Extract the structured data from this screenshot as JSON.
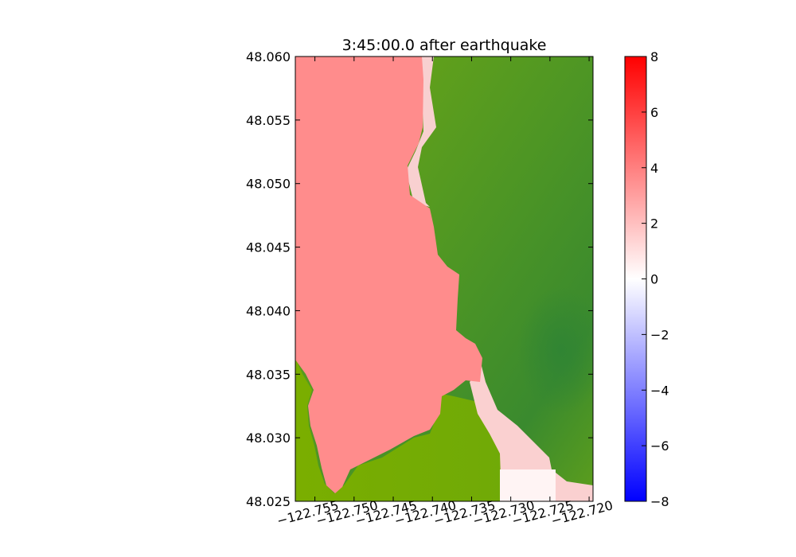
{
  "chart_data": {
    "type": "heatmap",
    "title": "3:45:00.0 after earthquake",
    "xlabel": "",
    "ylabel": "",
    "xlim": [
      -122.7575,
      -122.7195
    ],
    "ylim": [
      48.025,
      48.06
    ],
    "x_ticks": [
      -122.755,
      -122.75,
      -122.745,
      -122.74,
      -122.735,
      -122.73,
      -122.725,
      -122.72
    ],
    "x_tick_labels": [
      "−122.755",
      "−122.750",
      "−122.745",
      "−122.740",
      "−122.735",
      "−122.730",
      "−122.725",
      "−122.720"
    ],
    "y_ticks": [
      48.025,
      48.03,
      48.035,
      48.04,
      48.045,
      48.05,
      48.055,
      48.06
    ],
    "y_tick_labels": [
      "48.025",
      "48.030",
      "48.035",
      "48.040",
      "48.045",
      "48.050",
      "48.055",
      "48.060"
    ],
    "colorbar": {
      "range": [
        -8,
        8
      ],
      "ticks": [
        -8,
        -6,
        -4,
        -2,
        0,
        2,
        4,
        6,
        8
      ],
      "tick_labels": [
        "−8",
        "−6",
        "−4",
        "−2",
        "0",
        "2",
        "4",
        "6",
        "8"
      ],
      "colors": {
        "low": "#0000ff",
        "mid": "#ffffff",
        "high": "#ff0000"
      }
    },
    "water_value": 3.5,
    "water_color": "#ff8c8c",
    "land_colors": [
      "#7aac00",
      "#5a9a1e",
      "#3a8a2e"
    ],
    "grid": false,
    "legend": "none"
  }
}
